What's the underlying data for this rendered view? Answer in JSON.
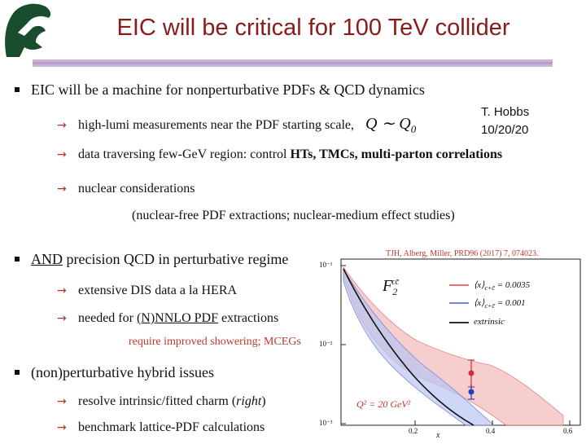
{
  "slide": {
    "title": "EIC will be critical for 100 TeV collider",
    "author_name": "T. Hobbs",
    "author_date": "10/20/20"
  },
  "bullets": {
    "b1": {
      "text": "EIC will be a machine for nonperturbative PDFs & QCD dynamics",
      "sub1": "high-lumi measurements near the PDF starting scale,",
      "sub1_math": "Q ∼ Q",
      "sub1_math_sub": "0",
      "sub2_pre": "data traversing few-GeV region: control ",
      "sub2_bold": "HTs, TMCs, multi-parton correlations",
      "sub3": "nuclear considerations",
      "note": "(nuclear-free PDF extractions; nuclear-medium effect studies)"
    },
    "b2": {
      "text_u": "AND",
      "text_rest": " precision QCD in perturbative regime",
      "sub1": "extensive DIS data a la HERA",
      "sub2_pre": "needed for ",
      "sub2_u": "(N)NNLO PDF",
      "sub2_post": " extractions",
      "note": "require improved showering; MCEGs"
    },
    "b3": {
      "text": "(non)perturbative hybrid issues",
      "sub1_pre": "resolve intrinsic/fitted charm (",
      "sub1_it": "right",
      "sub1_post": ")",
      "sub2": "benchmark lattice-PDF calculations"
    }
  },
  "figure": {
    "citation": "TJH, Alberg, Miller, PRD96 (2017) 7, 074023.",
    "f2_label": "F",
    "f2_sub": "2",
    "f2_sup": "cc̄",
    "legend": [
      {
        "label": "⟨x⟩",
        "sub": "c+c̄",
        "value": "= 0.0035",
        "color": "#e04040"
      },
      {
        "label": "⟨x⟩",
        "sub": "c+c̄",
        "value": "= 0.001",
        "color": "#4060d0"
      },
      {
        "label": "extrinsic",
        "color": "#111111"
      }
    ],
    "q2_label": "Q² = 20 GeV²",
    "x_ticks": [
      "0.2",
      "0.4",
      "0.6"
    ],
    "y_ticks": [
      "10⁻¹",
      "10⁻²",
      "10⁻³"
    ],
    "x_label": "x"
  }
}
